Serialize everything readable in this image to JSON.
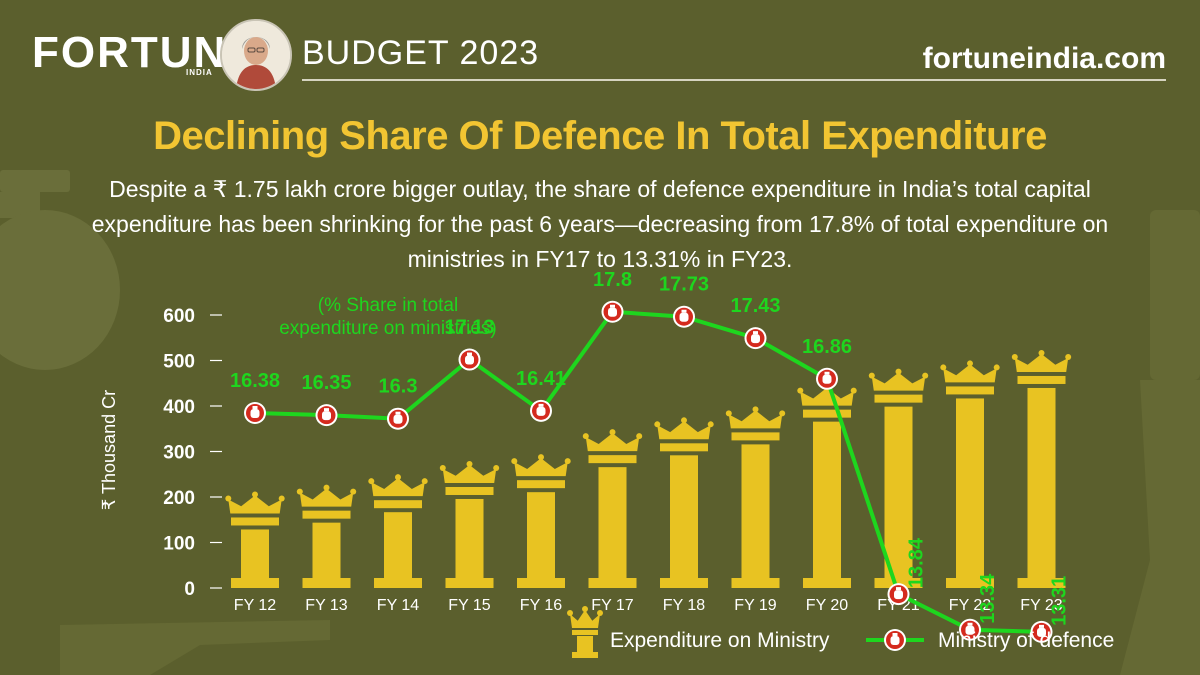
{
  "header": {
    "brand": "FORTUNE",
    "brand_sub": "INDIA",
    "edition": "BUDGET 2023",
    "site": "fortuneindia.com"
  },
  "title": "Declining Share Of Defence In Total Expenditure",
  "subtitle": "Despite a ₹ 1.75 lakh crore bigger outlay, the share of defence expenditure in India’s total capital expenditure has been shrinking for the past 6 years—decreasing from 17.8% of total expenditure on ministries in FY17 to 13.31% in FY23.",
  "chart_data": {
    "type": "bar",
    "categories": [
      "FY 12",
      "FY 13",
      "FY 14",
      "FY 15",
      "FY 16",
      "FY 17",
      "FY 18",
      "FY 19",
      "FY 20",
      "FY 21",
      "FY 22",
      "FY 23"
    ],
    "ylabel": "₹ Thousand Cr",
    "ylim": [
      0,
      600
    ],
    "yticks": [
      0,
      100,
      200,
      300,
      400,
      500,
      600
    ],
    "series": [
      {
        "name": "Expenditure on Ministry",
        "type": "bar",
        "color": "#e8c322",
        "values": [
          155,
          170,
          193,
          222,
          237,
          292,
          318,
          342,
          392,
          425,
          443,
          466
        ]
      },
      {
        "name": "Ministry of defence",
        "type": "line",
        "color": "#1ed61e",
        "values": [
          16.38,
          16.35,
          16.3,
          17.13,
          16.41,
          17.8,
          17.73,
          17.43,
          16.86,
          13.84,
          13.34,
          13.31
        ],
        "labels": [
          "16.38",
          "16.35",
          "16.3",
          "17.13",
          "16.41",
          "17.8",
          "17.73",
          "17.43",
          "16.86",
          "13.84",
          "13.34",
          "13.31"
        ]
      }
    ],
    "annotation": "(% Share in total expenditure on ministries)",
    "legend_position": "bottom-right",
    "grid": false
  }
}
